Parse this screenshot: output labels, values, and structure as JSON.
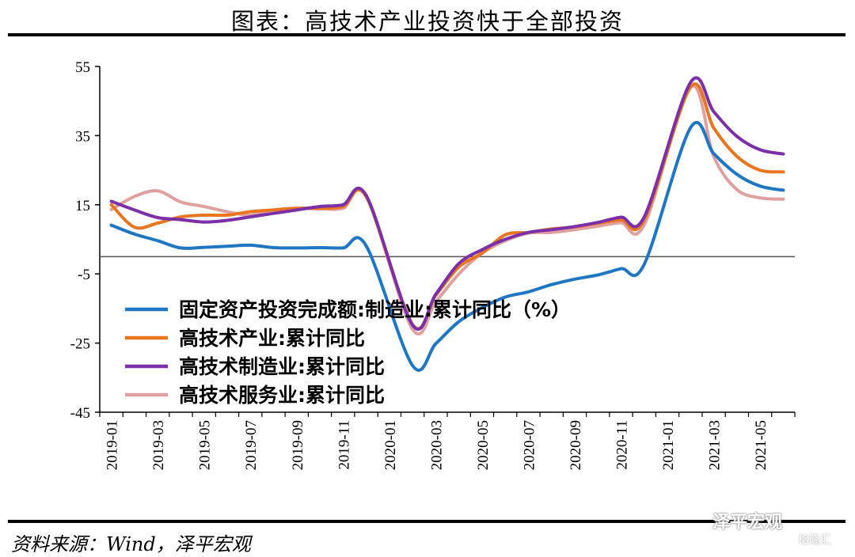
{
  "header": {
    "title": "图表：高技术产业投资快于全部投资"
  },
  "footer": {
    "source": "资料来源：Wind，泽平宏观",
    "watermark": "泽平宏观",
    "watermark_logo": "格隆汇"
  },
  "chart_data": {
    "type": "line",
    "title": "图表：高技术产业投资快于全部投资",
    "xlabel": "",
    "ylabel": "",
    "ylim": [
      -45,
      55
    ],
    "yticks": [
      55,
      35,
      15,
      -5,
      -25,
      -45
    ],
    "xticks": [
      "2019-01",
      "2019-03",
      "2019-05",
      "2019-07",
      "2019-09",
      "2019-11",
      "2020-01",
      "2020-03",
      "2020-05",
      "2020-07",
      "2020-09",
      "2020-11",
      "2021-01",
      "2021-03",
      "2021-05"
    ],
    "x": [
      "2019-01",
      "2019-02",
      "2019-03",
      "2019-04",
      "2019-05",
      "2019-06",
      "2019-07",
      "2019-08",
      "2019-09",
      "2019-10",
      "2019-11",
      "2019-12",
      "2020-01",
      "2020-02",
      "2020-03",
      "2020-04",
      "2020-05",
      "2020-06",
      "2020-07",
      "2020-08",
      "2020-09",
      "2020-10",
      "2020-11",
      "2020-12",
      "2021-01",
      "2021-02",
      "2021-03",
      "2021-04",
      "2021-05",
      "2021-06"
    ],
    "grid": false,
    "legend_position": "lower-center",
    "series": [
      {
        "name": "固定资产投资完成额:制造业:累计同比（%）",
        "color": "#1f77c4",
        "values": [
          9.1,
          6.5,
          4.6,
          2.5,
          2.7,
          3.0,
          3.3,
          2.6,
          2.5,
          2.6,
          2.5,
          3.1,
          null,
          -31.5,
          -25.2,
          -18.8,
          -14.8,
          -11.7,
          -10.2,
          -8.1,
          -6.5,
          -5.3,
          -3.5,
          -2.2,
          null,
          37.3,
          29.8,
          23.8,
          20.4,
          19.2
        ]
      },
      {
        "name": "高技术产业:累计同比",
        "color": "#e8761e",
        "values": [
          15.0,
          8.5,
          9.7,
          11.5,
          12.0,
          12.0,
          13.0,
          13.5,
          14.0,
          14.0,
          14.5,
          17.3,
          null,
          -19.6,
          -11.2,
          -3.0,
          1.0,
          6.3,
          7.0,
          8.0,
          8.6,
          9.7,
          10.6,
          10.6,
          null,
          49.0,
          37.2,
          29.0,
          25.0,
          24.5
        ]
      },
      {
        "name": "高技术制造业:累计同比",
        "color": "#7b2fa8",
        "values": [
          16.0,
          13.5,
          11.3,
          10.7,
          10.0,
          10.5,
          11.5,
          12.5,
          13.5,
          14.5,
          15.0,
          17.7,
          null,
          -19.8,
          -10.9,
          -2.0,
          2.0,
          5.0,
          7.0,
          7.8,
          8.7,
          9.9,
          11.4,
          11.5,
          null,
          50.4,
          41.9,
          34.8,
          30.9,
          29.7
        ]
      },
      {
        "name": "高技术服务业:累计同比",
        "color": "#e0a0a0",
        "values": [
          13.6,
          17.4,
          19.0,
          15.8,
          14.5,
          13.0,
          12.0,
          13.5,
          14.0,
          13.8,
          14.0,
          17.4,
          null,
          -21.0,
          -13.1,
          -5.0,
          1.0,
          4.6,
          6.8,
          7.0,
          7.8,
          8.8,
          9.8,
          9.2,
          null,
          49.0,
          28.9,
          19.4,
          17.0,
          16.6
        ]
      }
    ]
  }
}
